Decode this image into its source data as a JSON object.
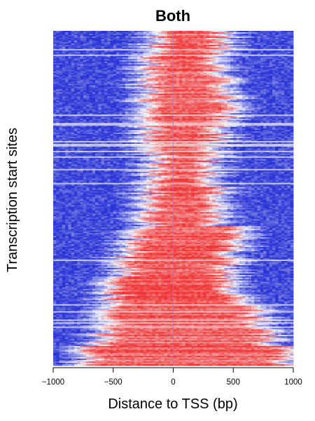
{
  "chart_data": {
    "type": "heatmap",
    "title": "Both",
    "xlabel": "Distance to TSS (bp)",
    "ylabel": "Transcription start sites",
    "xlim": [
      -1000,
      1000
    ],
    "x_ticks": [
      -1000,
      -500,
      0,
      500,
      1000
    ],
    "x_tick_labels": [
      "−1000",
      "−500",
      "0",
      "500",
      "1000"
    ],
    "reference_line_x": 0,
    "colors": {
      "low": "#2b35d6",
      "mid": "#f4f4f8",
      "high": "#ef3535",
      "reference_line": "#7f86d8"
    },
    "grid": false,
    "legend": "none",
    "rows": 240,
    "bins": 80,
    "row_bands": [
      {
        "rows_fraction": [
          0.0,
          0.06
        ],
        "high_start": -150,
        "high_end": 400
      },
      {
        "rows_fraction": [
          0.06,
          0.13
        ],
        "high_start": -200,
        "high_end": 380
      },
      {
        "rows_fraction": [
          0.13,
          0.2
        ],
        "high_start": -200,
        "high_end": 420
      },
      {
        "rows_fraction": [
          0.2,
          0.27
        ],
        "high_start": -250,
        "high_end": 450
      },
      {
        "rows_fraction": [
          0.27,
          0.36
        ],
        "high_start": -200,
        "high_end": 350
      },
      {
        "rows_fraction": [
          0.36,
          0.46
        ],
        "high_start": -150,
        "high_end": 300
      },
      {
        "rows_fraction": [
          0.46,
          0.58
        ],
        "high_start": -200,
        "high_end": 350
      },
      {
        "rows_fraction": [
          0.58,
          0.66
        ],
        "high_start": -300,
        "high_end": 500
      },
      {
        "rows_fraction": [
          0.66,
          0.74
        ],
        "high_start": -400,
        "high_end": 450
      },
      {
        "rows_fraction": [
          0.74,
          0.82
        ],
        "high_start": -500,
        "high_end": 500
      },
      {
        "rows_fraction": [
          0.82,
          0.88
        ],
        "high_start": -550,
        "high_end": 700
      },
      {
        "rows_fraction": [
          0.88,
          0.94
        ],
        "high_start": -600,
        "high_end": 800
      },
      {
        "rows_fraction": [
          0.94,
          1.0
        ],
        "high_start": -700,
        "high_end": 900
      }
    ]
  }
}
